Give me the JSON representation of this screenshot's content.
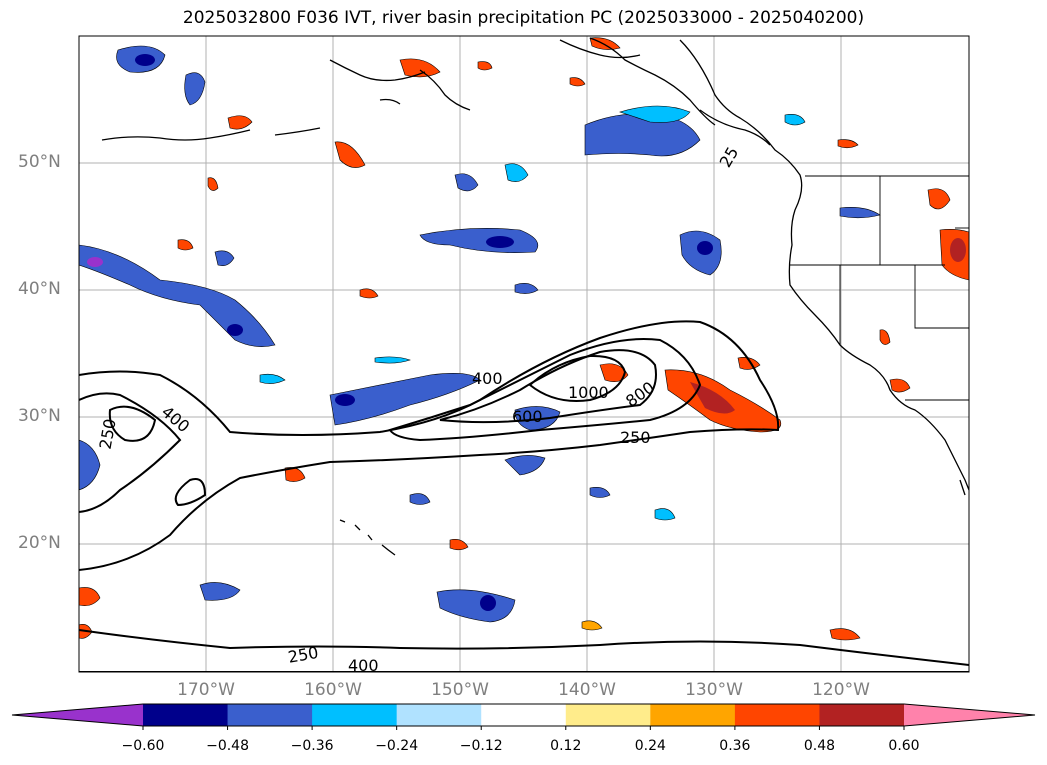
{
  "title": "2025032800 F036 IVT, river basin precipitation PC (2025033000 - 2025040200)",
  "lat_labels": [
    "50°N",
    "40°N",
    "30°N",
    "20°N"
  ],
  "lon_labels": [
    "170°W",
    "160°W",
    "150°W",
    "140°W",
    "130°W",
    "120°W"
  ],
  "colorbar": {
    "ticks": [
      "−0.60",
      "−0.48",
      "−0.36",
      "−0.24",
      "−0.12",
      "0.12",
      "0.24",
      "0.36",
      "0.48",
      "0.60"
    ],
    "colors": [
      "#9932cc",
      "#00008b",
      "#3a5fcd",
      "#00bfff",
      "#b0e2ff",
      "#ffffff",
      "#ffec8b",
      "#ffa500",
      "#ff4500",
      "#b22222",
      "#ff82ab"
    ]
  },
  "contour_labels": [
    "400",
    "1000",
    "800",
    "600",
    "250",
    "400",
    "250",
    "250",
    "400",
    "25"
  ]
}
